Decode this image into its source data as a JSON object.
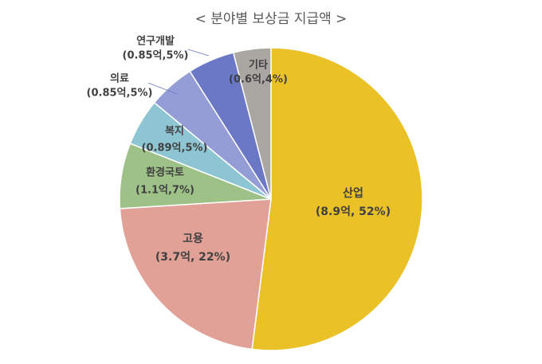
{
  "chart_data": {
    "type": "pie",
    "title": "< 분야별 보상금 지급액 >",
    "categories": [
      "산업",
      "고용",
      "환경국토",
      "복지",
      "의료",
      "연구개발",
      "기타"
    ],
    "values": [
      52,
      22,
      7,
      5,
      5,
      5,
      4
    ],
    "value_labels": [
      "(8.9억, 52%)",
      "(3.7억, 22%)",
      "(1.1억,7%)",
      "(0.89억,5%)",
      "(0.85억,5%)",
      "(0.85억,5%)",
      "(0.6억,4%)"
    ],
    "colors": [
      "#ebc128",
      "#e2a196",
      "#9dc186",
      "#8ec5d3",
      "#959dd6",
      "#6a78c6",
      "#aaa7a3"
    ]
  }
}
